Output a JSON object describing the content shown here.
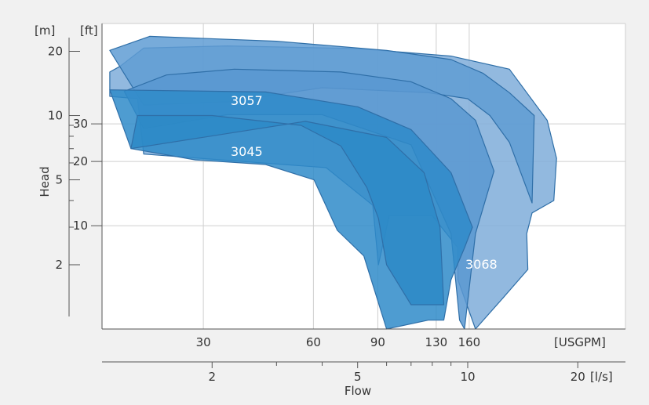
{
  "chart_data": {
    "type": "area",
    "xlabel": "Flow",
    "ylabel": "Head",
    "scale": "log-log",
    "grid": true,
    "x_axes": {
      "usgpm": {
        "unit": "[USGPM]",
        "ticks": [
          30,
          60,
          90,
          130,
          160
        ]
      },
      "ls": {
        "unit": "[l/s]",
        "ticks": [
          2,
          5,
          10,
          20
        ],
        "minor_ticks": [
          3,
          4,
          6,
          7,
          8,
          9
        ]
      }
    },
    "y_axes": {
      "m": {
        "unit": "[m]",
        "ticks": [
          2,
          5,
          10,
          20
        ],
        "minor_ticks": [
          3,
          4,
          6,
          7,
          8,
          9
        ]
      },
      "ft": {
        "unit": "[ft]",
        "ticks": [
          10,
          20,
          30
        ]
      }
    },
    "xlim_ls": [
      1.0,
      27.0
    ],
    "ylim_m": [
      1.0,
      27.0
    ],
    "series": [
      {
        "name": "3068",
        "color": "#7fadd9",
        "points": [
          [
            1.05,
            16.0
          ],
          [
            1.12,
            17.0
          ],
          [
            1.3,
            20.7
          ],
          [
            2.2,
            21.2
          ],
          [
            5.0,
            20.6
          ],
          [
            9.0,
            19.0
          ],
          [
            13.0,
            16.5
          ],
          [
            16.5,
            9.5
          ],
          [
            17.5,
            6.3
          ],
          [
            17.2,
            4.0
          ],
          [
            15.0,
            3.5
          ],
          [
            14.5,
            2.8
          ],
          [
            14.6,
            1.9
          ],
          [
            12.5,
            1.4
          ],
          [
            10.5,
            1.0
          ],
          [
            9.4,
            1.7
          ],
          [
            9.4,
            2.4
          ],
          [
            8.0,
            3.4
          ],
          [
            6.1,
            3.4
          ],
          [
            5.7,
            2.0
          ],
          [
            5.5,
            3.8
          ],
          [
            4.1,
            5.7
          ],
          [
            1.3,
            6.6
          ],
          [
            1.25,
            12.0
          ],
          [
            1.05,
            12.3
          ]
        ]
      },
      {
        "name": "3057-outer",
        "color": "#5f9cd3",
        "points": [
          [
            1.05,
            20.2
          ],
          [
            1.35,
            23.5
          ],
          [
            3.0,
            22.3
          ],
          [
            6.0,
            20.2
          ],
          [
            9.0,
            18.3
          ],
          [
            11.0,
            15.8
          ],
          [
            13.0,
            12.8
          ],
          [
            15.2,
            10.0
          ],
          [
            15.0,
            3.9
          ],
          [
            13.0,
            7.5
          ],
          [
            11.5,
            10.0
          ],
          [
            10.0,
            12.0
          ],
          [
            7.8,
            12.8
          ],
          [
            4.0,
            13.5
          ],
          [
            2.2,
            11.6
          ],
          [
            1.3,
            11.2
          ]
        ]
      },
      {
        "name": "3057",
        "color": "#5998d1",
        "points": [
          [
            1.15,
            13.0
          ],
          [
            1.5,
            15.5
          ],
          [
            2.3,
            16.5
          ],
          [
            4.5,
            16.0
          ],
          [
            7.0,
            14.4
          ],
          [
            9.0,
            12.0
          ],
          [
            10.5,
            9.5
          ],
          [
            11.8,
            5.5
          ],
          [
            10.5,
            2.8
          ],
          [
            9.8,
            1.0
          ],
          [
            9.5,
            1.1
          ],
          [
            9.0,
            2.8
          ],
          [
            7.0,
            7.3
          ],
          [
            4.0,
            10.1
          ],
          [
            2.2,
            10.1
          ],
          [
            1.3,
            8.7
          ]
        ]
      },
      {
        "name": "3045",
        "color": "#2f8bc9",
        "points": [
          [
            1.05,
            13.2
          ],
          [
            2.8,
            12.9
          ],
          [
            5.0,
            11.0
          ],
          [
            7.0,
            8.6
          ],
          [
            9.0,
            5.4
          ],
          [
            10.3,
            3.0
          ],
          [
            9.8,
            2.4
          ],
          [
            9.0,
            1.7
          ],
          [
            8.6,
            1.1
          ],
          [
            7.8,
            1.1
          ],
          [
            6.0,
            1.0
          ],
          [
            5.2,
            2.2
          ],
          [
            4.4,
            2.9
          ],
          [
            3.8,
            5.0
          ],
          [
            2.8,
            5.9
          ],
          [
            1.8,
            6.2
          ],
          [
            1.2,
            7.0
          ],
          [
            1.05,
            13.2
          ]
        ]
      },
      {
        "name": "3045-inner-left",
        "color": "#2d89c7",
        "points": [
          [
            1.2,
            7.0
          ],
          [
            1.25,
            10.0
          ],
          [
            2.0,
            10.0
          ],
          [
            3.5,
            9.0
          ],
          [
            4.5,
            7.2
          ],
          [
            5.3,
            4.6
          ],
          [
            5.7,
            3.3
          ],
          [
            6.0,
            2.0
          ],
          [
            7.0,
            1.3
          ],
          [
            8.6,
            1.3
          ],
          [
            8.4,
            3.0
          ],
          [
            7.6,
            5.4
          ],
          [
            6.0,
            7.9
          ],
          [
            3.6,
            9.4
          ]
        ]
      }
    ],
    "labels": [
      "3057",
      "3045",
      "3068"
    ]
  }
}
